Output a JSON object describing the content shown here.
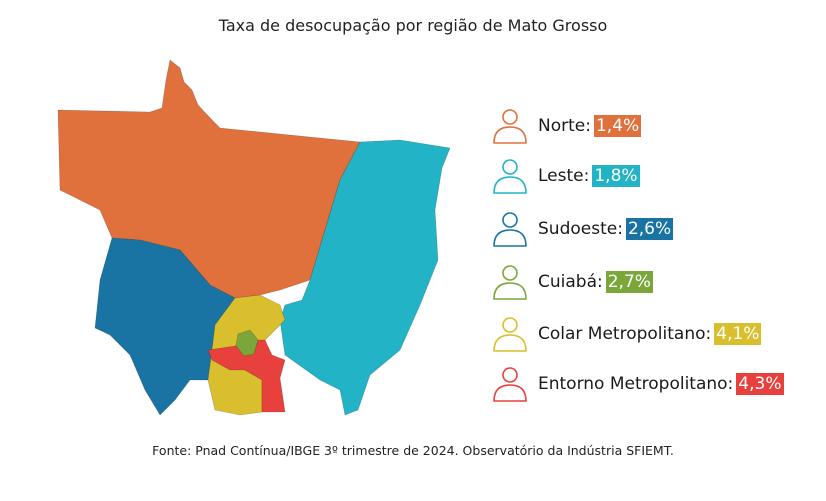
{
  "title": "Taxa de desocupação por região de Mato Grosso",
  "source": "Fonte: Pnad Contínua/IBGE 3º trimestre de 2024. Observatório da Indústria SFIEMT.",
  "colors": {
    "norte": "#e0703c",
    "leste": "#22b3c6",
    "sudoeste": "#1a74a3",
    "cuiaba": "#7aa63a",
    "colar": "#d9bf2e",
    "entorno": "#e8403c"
  },
  "legend": [
    {
      "label": "Norte:",
      "value": "1,4%",
      "color": "#e0703c"
    },
    {
      "label": "Leste:",
      "value": "1,8%",
      "color": "#22b3c6"
    },
    {
      "label": "Sudoeste:",
      "value": "2,6%",
      "color": "#1a74a3"
    },
    {
      "label": "Cuiabá:",
      "value": "2,7%",
      "color": "#7aa63a"
    },
    {
      "label": "Colar Metropolitano:",
      "value": "4,1%",
      "color": "#d9bf2e"
    },
    {
      "label": "Entorno Metropolitano:",
      "value": "4,3%",
      "color": "#e8403c"
    }
  ]
}
